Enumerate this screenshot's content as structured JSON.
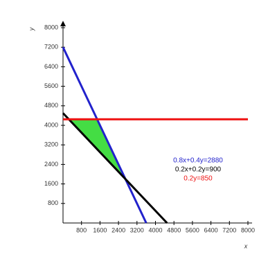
{
  "chart_data": {
    "type": "line",
    "xlabel": "x",
    "ylabel": "y",
    "xlim": [
      0,
      8000
    ],
    "ylim": [
      0,
      8000
    ],
    "xticks": [
      800,
      1600,
      2400,
      3200,
      4000,
      4800,
      5600,
      6400,
      7200,
      8000
    ],
    "yticks": [
      800,
      1600,
      2400,
      3200,
      4000,
      4800,
      5600,
      6400,
      7200,
      8000
    ],
    "region": {
      "color": "#44dd44",
      "x": [
        250,
        1475,
        2700
      ],
      "values": [
        4250,
        4250,
        1800
      ]
    },
    "series": [
      {
        "name": "0.8x+0.4y=2880",
        "color": "#2222cc",
        "x": [
          0,
          3600
        ],
        "values": [
          7200,
          0
        ]
      },
      {
        "name": "0.2x+0.2y=900",
        "color": "#000000",
        "x": [
          0,
          4500
        ],
        "values": [
          4500,
          0
        ]
      },
      {
        "name": "0.2y=850",
        "color": "#ee1111",
        "x": [
          0,
          8000
        ],
        "values": [
          4250,
          4250
        ]
      }
    ]
  }
}
